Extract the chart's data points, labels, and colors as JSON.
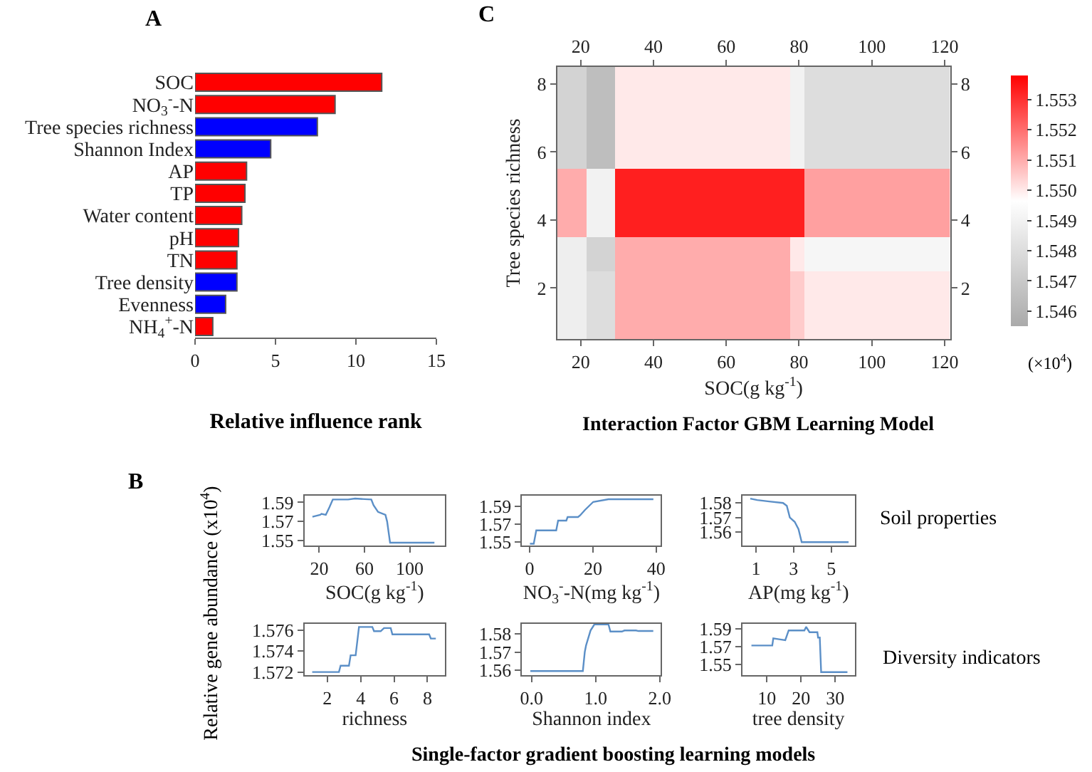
{
  "chart_data": [
    {
      "type": "bar",
      "title": "A",
      "orientation": "horizontal",
      "xlabel": "Relative influence rank",
      "categories": [
        "SOC",
        "NO$_{3}$$^{-}$-N",
        "Tree species richness",
        "Shannon Index",
        "AP",
        "TP",
        "Water content",
        "pH",
        "TN",
        "Tree density",
        "Evenness",
        "NH$_{4}$$^{+}$-N"
      ],
      "values": [
        11.6,
        8.7,
        7.6,
        4.7,
        3.2,
        3.1,
        2.9,
        2.7,
        2.6,
        2.6,
        1.9,
        1.1
      ],
      "colors": [
        "#ff0000",
        "#ff0000",
        "#0000ff",
        "#0000ff",
        "#ff0000",
        "#ff0000",
        "#ff0000",
        "#ff0000",
        "#ff0000",
        "#0000ff",
        "#0000ff",
        "#ff0000"
      ],
      "xlim": [
        0,
        15
      ],
      "xticks": [
        0,
        5,
        10,
        15
      ]
    },
    {
      "type": "heatmap",
      "title": "C",
      "xlabel": "SOC(g kg$^{-1}$)",
      "ylabel": "Tree species richness",
      "clabel": "(×10$^{4}$)",
      "annotations": [
        "Interaction Factor GBM Learning Model"
      ],
      "x": [
        15.5,
        19.5,
        23.5,
        27.5,
        31.5,
        35.5,
        39.5,
        43.5,
        47.5,
        51.5,
        55.5,
        59.5,
        63.5,
        67.5,
        71.5,
        75.5,
        79.5,
        83.5,
        87.5,
        91.5,
        95.5,
        99.5,
        103.5,
        107.5,
        111.5,
        115.5,
        119.5
      ],
      "y": [
        8,
        7,
        6,
        5,
        4,
        3,
        2,
        1
      ],
      "cells": [
        [
          1.5475,
          1.5475,
          1.5465,
          1.5465,
          1.55,
          1.55,
          1.55,
          1.55,
          1.55,
          1.55,
          1.55,
          1.55,
          1.55,
          1.55,
          1.55,
          1.55,
          1.549,
          1.548,
          1.548,
          1.548,
          1.548,
          1.548,
          1.548,
          1.548,
          1.548,
          1.548,
          1.548
        ],
        [
          1.5475,
          1.5475,
          1.5465,
          1.5465,
          1.55,
          1.55,
          1.55,
          1.55,
          1.55,
          1.55,
          1.55,
          1.55,
          1.55,
          1.55,
          1.55,
          1.55,
          1.549,
          1.548,
          1.548,
          1.548,
          1.548,
          1.548,
          1.548,
          1.548,
          1.548,
          1.548,
          1.548
        ],
        [
          1.5475,
          1.5475,
          1.5465,
          1.5465,
          1.55,
          1.55,
          1.55,
          1.55,
          1.55,
          1.55,
          1.55,
          1.55,
          1.55,
          1.55,
          1.55,
          1.55,
          1.549,
          1.548,
          1.548,
          1.548,
          1.548,
          1.548,
          1.548,
          1.548,
          1.548,
          1.548,
          1.548
        ],
        [
          1.551,
          1.551,
          1.549,
          1.549,
          1.5533,
          1.5533,
          1.5533,
          1.5533,
          1.5533,
          1.5533,
          1.5533,
          1.5533,
          1.5533,
          1.5533,
          1.5533,
          1.5533,
          1.5533,
          1.5512,
          1.5512,
          1.5512,
          1.5512,
          1.5512,
          1.5512,
          1.5512,
          1.5512,
          1.5512,
          1.5512
        ],
        [
          1.551,
          1.551,
          1.549,
          1.549,
          1.5533,
          1.5533,
          1.5533,
          1.5533,
          1.5533,
          1.5533,
          1.5533,
          1.5533,
          1.5533,
          1.5533,
          1.5533,
          1.5533,
          1.5533,
          1.5512,
          1.5512,
          1.5512,
          1.5512,
          1.5512,
          1.5512,
          1.5512,
          1.5512,
          1.5512,
          1.5512
        ],
        [
          1.5488,
          1.5488,
          1.5475,
          1.5475,
          1.551,
          1.551,
          1.551,
          1.551,
          1.551,
          1.551,
          1.551,
          1.551,
          1.551,
          1.551,
          1.551,
          1.551,
          1.55,
          1.5492,
          1.5492,
          1.5492,
          1.5492,
          1.5492,
          1.5492,
          1.5492,
          1.5492,
          1.5492,
          1.5492
        ],
        [
          1.5488,
          1.5488,
          1.548,
          1.548,
          1.551,
          1.551,
          1.551,
          1.551,
          1.551,
          1.551,
          1.551,
          1.551,
          1.551,
          1.551,
          1.551,
          1.551,
          1.5505,
          1.55,
          1.55,
          1.55,
          1.55,
          1.55,
          1.55,
          1.55,
          1.55,
          1.55,
          1.55
        ],
        [
          1.5488,
          1.5488,
          1.548,
          1.548,
          1.551,
          1.551,
          1.551,
          1.551,
          1.551,
          1.551,
          1.551,
          1.551,
          1.551,
          1.551,
          1.551,
          1.551,
          1.5505,
          1.55,
          1.55,
          1.55,
          1.55,
          1.55,
          1.55,
          1.55,
          1.55,
          1.55,
          1.55
        ]
      ],
      "colors": [
        "#aaaaaa",
        "#ffffff",
        "#ff0000"
      ],
      "clim": [
        1.5455,
        1.5538
      ],
      "cticks": [
        {
          "value": 1.546,
          "label": "1.546"
        },
        {
          "value": 1.547,
          "label": "1.547"
        },
        {
          "value": 1.548,
          "label": "1.548"
        },
        {
          "value": 1.549,
          "label": "1.549"
        },
        {
          "value": 1.55,
          "label": "1.550"
        },
        {
          "value": 1.551,
          "label": "1.551"
        },
        {
          "value": 1.552,
          "label": "1.552"
        },
        {
          "value": 1.553,
          "label": "1.553"
        }
      ],
      "xlim": [
        13.5,
        121.5
      ],
      "xticks": [
        20,
        40,
        60,
        80,
        100,
        120
      ],
      "x2lim": [
        13.5,
        121.5
      ],
      "x2ticks": [
        20,
        40,
        60,
        80,
        100,
        120
      ],
      "ylim": [
        0.5,
        8.5
      ],
      "yticks": [
        2,
        4,
        6,
        8
      ],
      "y2lim": [
        0.5,
        8.5
      ],
      "y2ticks": [
        2,
        4,
        6,
        8
      ]
    },
    {
      "type": "line",
      "title": "B",
      "ylabel": "Relative gene abundance (x10$^{4}$)",
      "xlabel": "SOC(g kg$^{-1}$)",
      "series": [
        {
          "color": "#5b8fc7",
          "x": [
            14,
            20.8,
            22,
            25.8,
            29,
            32,
            45.5,
            51.7,
            66,
            68,
            72,
            78.5,
            80,
            82.6,
            121.8
          ],
          "values": [
            1.575,
            1.577,
            1.578,
            1.577,
            1.585,
            1.593,
            1.593,
            1.594,
            1.593,
            1.587,
            1.58,
            1.577,
            1.57,
            1.548,
            1.548
          ]
        }
      ],
      "xlim": [
        7,
        131
      ],
      "xticks": [
        20,
        60,
        100
      ],
      "ylim": [
        1.545,
        1.597
      ],
      "yticks": [
        1.55,
        1.57,
        1.59
      ]
    },
    {
      "type": "line",
      "xlabel": "NO$_{3}$$^{-}$-N(mg kg$^{-1}$)",
      "series": [
        {
          "color": "#5b8fc7",
          "x": [
            0.1,
            1.3,
            2.1,
            8.4,
            9,
            11.6,
            12,
            15.3,
            16,
            17.5,
            20.1,
            24.9,
            39.1
          ],
          "values": [
            1.548,
            1.548,
            1.563,
            1.563,
            1.574,
            1.574,
            1.578,
            1.578,
            1.58,
            1.586,
            1.595,
            1.598,
            1.598
          ]
        }
      ],
      "xlim": [
        -2.4,
        41.5
      ],
      "xticks": [
        0,
        20,
        40
      ],
      "ylim": [
        1.546,
        1.602
      ],
      "yticks": [
        1.55,
        1.57,
        1.59
      ]
    },
    {
      "type": "line",
      "xlabel": "AP(mg kg$^{-1}$)",
      "annotations": [
        "Soil properties"
      ],
      "series": [
        {
          "color": "#5b8fc7",
          "x": [
            0.7,
            1.07,
            1.7,
            2.44,
            2.64,
            2.8,
            3.06,
            3.26,
            3.43,
            5.92
          ],
          "values": [
            1.583,
            1.582,
            1.581,
            1.58,
            1.578,
            1.57,
            1.567,
            1.562,
            1.553,
            1.553
          ]
        }
      ],
      "xlim": [
        0.28,
        6.24
      ],
      "xticks": [
        1,
        3,
        5
      ],
      "ylim": [
        1.5507,
        1.585
      ],
      "yticks": [
        1.56,
        1.57,
        1.58
      ]
    },
    {
      "type": "line",
      "xlabel": "richness",
      "series": [
        {
          "color": "#5b8fc7",
          "x": [
            1.1,
            2.7,
            2.8,
            3.3,
            3.4,
            3.7,
            3.9,
            4.7,
            4.8,
            5.2,
            5.4,
            5.8,
            5.9,
            8.1,
            8.2,
            8.5
          ],
          "values": [
            1.572,
            1.572,
            1.5726,
            1.5726,
            1.5736,
            1.5736,
            1.5763,
            1.5763,
            1.5759,
            1.5759,
            1.5762,
            1.5762,
            1.5756,
            1.5756,
            1.5752,
            1.5752
          ]
        }
      ],
      "xlim": [
        0.64,
        9.04
      ],
      "xticks": [
        2,
        4,
        6,
        8
      ],
      "ylim": [
        1.5717,
        1.5766
      ],
      "yticks": [
        1.572,
        1.574,
        1.576
      ]
    },
    {
      "type": "line",
      "xlabel": "Shannon index",
      "annotations": [
        "Single-factor gradient boosting learning models"
      ],
      "series": [
        {
          "color": "#5b8fc7",
          "x": [
            -0.02,
            0.8,
            0.83,
            0.85,
            0.92,
            0.98,
            1.2,
            1.23,
            1.41,
            1.45,
            1.63,
            1.67,
            1.9
          ],
          "values": [
            1.5594,
            1.5594,
            1.57,
            1.5737,
            1.582,
            1.5854,
            1.5854,
            1.5814,
            1.5814,
            1.582,
            1.582,
            1.5817,
            1.5817
          ]
        }
      ],
      "xlim": [
        -0.15,
        2.02
      ],
      "xticks": [
        {
          "value": 0,
          "label": "0.0"
        },
        {
          "value": 1,
          "label": "1.0"
        },
        {
          "value": 2,
          "label": "2.0"
        }
      ],
      "ylim": [
        1.5571,
        1.5857
      ],
      "yticks": [
        1.56,
        1.57,
        1.58
      ]
    },
    {
      "type": "line",
      "xlabel": "tree density",
      "annotations": [
        "Diversity indicators"
      ],
      "series": [
        {
          "color": "#5b8fc7",
          "x": [
            5.5,
            11.6,
            11.9,
            13.6,
            15.4,
            16.4,
            21,
            21.5,
            22.5,
            24.8,
            25,
            25.5,
            25.9,
            33.6
          ],
          "values": [
            1.571,
            1.571,
            1.579,
            1.578,
            1.577,
            1.588,
            1.588,
            1.592,
            1.586,
            1.586,
            1.58,
            1.58,
            1.541,
            1.541
          ]
        }
      ],
      "xlim": [
        2.84,
        35.7
      ],
      "xticks": [
        10,
        20,
        30
      ],
      "ylim": [
        1.5376,
        1.5954
      ],
      "yticks": [
        1.55,
        1.57,
        1.59
      ]
    }
  ]
}
